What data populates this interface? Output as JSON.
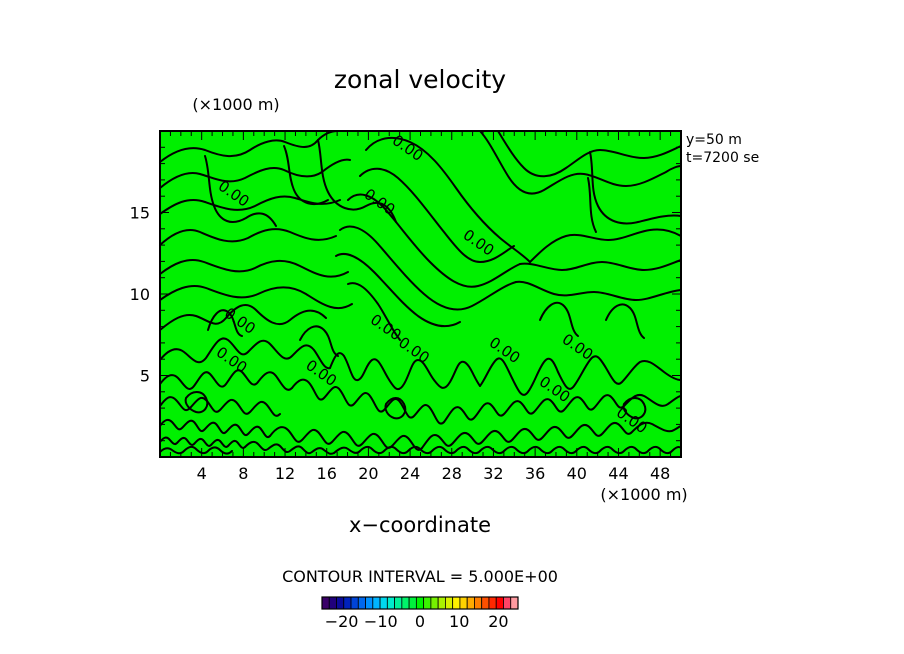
{
  "chart_data": {
    "type": "contour",
    "title": "zonal velocity",
    "xlabel": "x−coordinate",
    "x_unit": "(×1000 m)",
    "y_unit": "(×1000 m)",
    "xlim": [
      0,
      50
    ],
    "ylim": [
      0,
      20
    ],
    "x_ticks": [
      4,
      8,
      12,
      16,
      20,
      24,
      28,
      32,
      36,
      40,
      44,
      48
    ],
    "y_ticks": [
      5,
      10,
      15
    ],
    "info": [
      "y=50 m",
      "t=7200 se"
    ],
    "contour_interval_text": "CONTOUR INTERVAL = 5.000E+00",
    "contour_labels": [
      {
        "text": "0.00",
        "x": 23.5,
        "y": 18.7
      },
      {
        "text": "0.00",
        "x": 6.8,
        "y": 15.9
      },
      {
        "text": "0.00",
        "x": 20.8,
        "y": 15.4
      },
      {
        "text": "0.00",
        "x": 30.3,
        "y": 12.9
      },
      {
        "text": "0.00",
        "x": 7.4,
        "y": 8.1
      },
      {
        "text": "0.00",
        "x": 21.4,
        "y": 7.7
      },
      {
        "text": "0.00",
        "x": 6.6,
        "y": 5.7
      },
      {
        "text": "0.00",
        "x": 24.1,
        "y": 6.3
      },
      {
        "text": "0.00",
        "x": 32.8,
        "y": 6.3
      },
      {
        "text": "0.00",
        "x": 39.8,
        "y": 6.5
      },
      {
        "text": "0.00",
        "x": 15.2,
        "y": 4.9
      },
      {
        "text": "0.00",
        "x": 37.6,
        "y": 3.9
      },
      {
        "text": "0.00",
        "x": 45.0,
        "y": 2.0
      }
    ],
    "colorbar": {
      "ticks": [
        -20,
        -10,
        0,
        10,
        20
      ],
      "tick_labels": [
        "−20",
        "−10",
        "0",
        "10",
        "20"
      ],
      "range": [
        -25,
        25
      ],
      "colors": [
        "#3a0068",
        "#20007c",
        "#0a0a9a",
        "#0022bc",
        "#0044d8",
        "#0068ee",
        "#0090ff",
        "#00b4ff",
        "#00d8ee",
        "#00eccc",
        "#00f29a",
        "#00f26a",
        "#00f23c",
        "#00f200",
        "#3af200",
        "#76f200",
        "#aaf200",
        "#d8f200",
        "#fff200",
        "#ffd200",
        "#ffaa00",
        "#ff7e00",
        "#ff5000",
        "#ff2800",
        "#ff0000",
        "#ff4466",
        "#ff9aa0"
      ]
    },
    "field_color": "#00f000",
    "grid": false
  }
}
